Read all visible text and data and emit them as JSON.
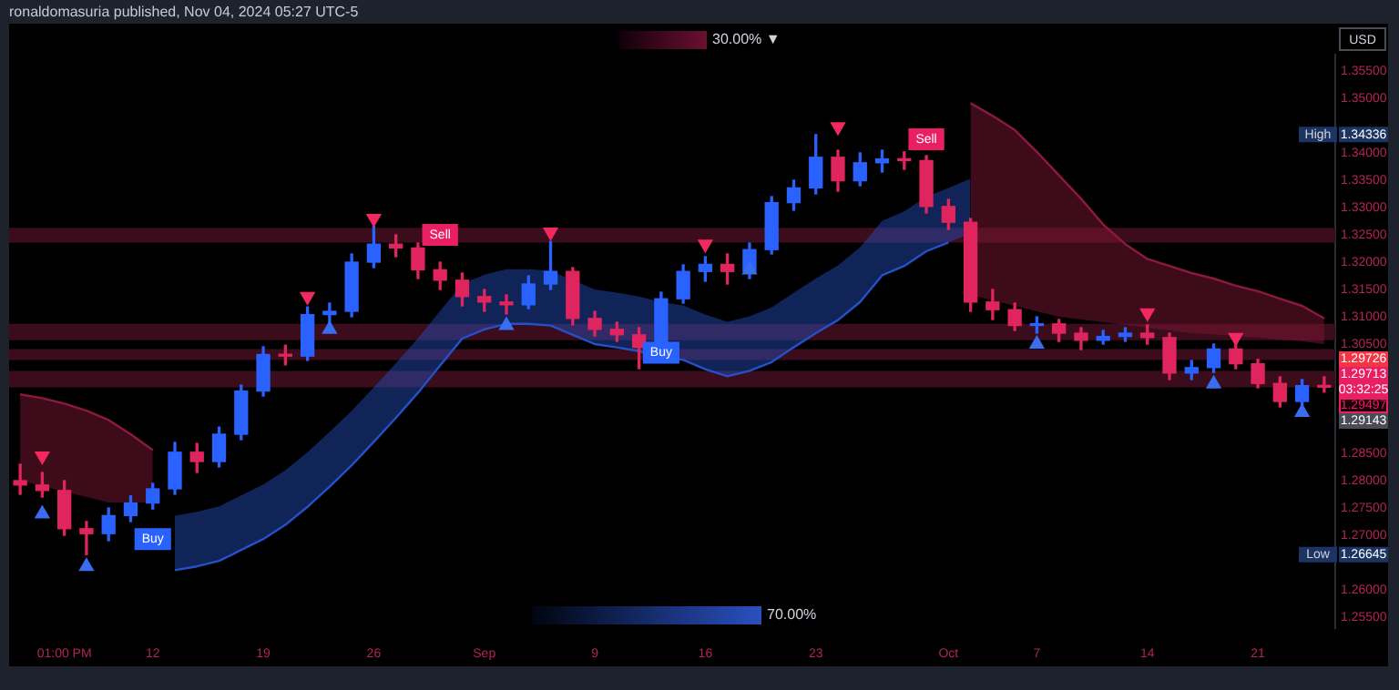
{
  "chart_data": {
    "type": "candlestick",
    "categories": [
      null,
      null,
      "01:00 PM",
      null,
      null,
      null,
      "12",
      null,
      null,
      null,
      null,
      "19",
      null,
      null,
      null,
      null,
      "26",
      null,
      null,
      null,
      null,
      "Sep",
      null,
      null,
      null,
      null,
      "9",
      null,
      null,
      null,
      null,
      "16",
      null,
      null,
      null,
      null,
      "23",
      null,
      null,
      null,
      null,
      null,
      "Oct",
      null,
      null,
      null,
      "7",
      null,
      null,
      null,
      null,
      "14",
      null,
      null,
      null,
      null,
      "21",
      null,
      null,
      null
    ],
    "series": [
      {
        "type": "candlestick",
        "ohlc": [
          [
            1.28,
            1.283,
            1.2775,
            1.2792
          ],
          [
            1.2792,
            1.2815,
            1.277,
            1.2782
          ],
          [
            1.2782,
            1.28,
            1.27,
            1.2712
          ],
          [
            1.2712,
            1.2725,
            1.26645,
            1.2703
          ],
          [
            1.2703,
            1.275,
            1.269,
            1.2736
          ],
          [
            1.2736,
            1.2772,
            1.2725,
            1.2759
          ],
          [
            1.2759,
            1.2795,
            1.2748,
            1.2785
          ],
          [
            1.2785,
            1.287,
            1.2775,
            1.2852
          ],
          [
            1.2852,
            1.2868,
            1.2815,
            1.2835
          ],
          [
            1.2835,
            1.2898,
            1.2825,
            1.2885
          ],
          [
            1.2885,
            1.2975,
            1.2875,
            1.2964
          ],
          [
            1.2964,
            1.3045,
            1.2955,
            1.3031
          ],
          [
            1.3031,
            1.3048,
            1.3012,
            1.3028
          ],
          [
            1.3028,
            1.3118,
            1.302,
            1.3104
          ],
          [
            1.3104,
            1.3125,
            1.3085,
            1.311
          ],
          [
            1.311,
            1.3215,
            1.31,
            1.32
          ],
          [
            1.32,
            1.3266,
            1.319,
            1.3233
          ],
          [
            1.3233,
            1.325,
            1.321,
            1.3226
          ],
          [
            1.3226,
            1.3235,
            1.317,
            1.3186
          ],
          [
            1.3186,
            1.32,
            1.315,
            1.3167
          ],
          [
            1.3167,
            1.318,
            1.312,
            1.3137
          ],
          [
            1.3137,
            1.315,
            1.311,
            1.3127
          ],
          [
            1.3127,
            1.314,
            1.3105,
            1.3122
          ],
          [
            1.3122,
            1.3175,
            1.3115,
            1.316
          ],
          [
            1.316,
            1.3238,
            1.315,
            1.3183
          ],
          [
            1.3183,
            1.319,
            1.3085,
            1.3097
          ],
          [
            1.3097,
            1.311,
            1.3065,
            1.3077
          ],
          [
            1.3077,
            1.309,
            1.3055,
            1.3067
          ],
          [
            1.3067,
            1.308,
            1.3005,
            1.3044
          ],
          [
            1.3044,
            1.3145,
            1.3035,
            1.3133
          ],
          [
            1.3133,
            1.3195,
            1.3125,
            1.3183
          ],
          [
            1.3183,
            1.321,
            1.3165,
            1.3196
          ],
          [
            1.3196,
            1.3215,
            1.316,
            1.3183
          ],
          [
            1.3183,
            1.3235,
            1.317,
            1.3223
          ],
          [
            1.3223,
            1.332,
            1.3215,
            1.3309
          ],
          [
            1.3309,
            1.335,
            1.3295,
            1.3336
          ],
          [
            1.3336,
            1.34336,
            1.3325,
            1.3392
          ],
          [
            1.3392,
            1.3405,
            1.333,
            1.3349
          ],
          [
            1.3349,
            1.34,
            1.334,
            1.3382
          ],
          [
            1.3382,
            1.3405,
            1.3365,
            1.3389
          ],
          [
            1.3389,
            1.3402,
            1.337,
            1.3386
          ],
          [
            1.3386,
            1.3395,
            1.329,
            1.3302
          ],
          [
            1.3302,
            1.3315,
            1.326,
            1.3273
          ],
          [
            1.3273,
            1.328,
            1.311,
            1.3127
          ],
          [
            1.3127,
            1.315,
            1.3095,
            1.3113
          ],
          [
            1.3113,
            1.3125,
            1.3075,
            1.3084
          ],
          [
            1.3084,
            1.31,
            1.307,
            1.3087
          ],
          [
            1.3087,
            1.3095,
            1.3055,
            1.307
          ],
          [
            1.307,
            1.308,
            1.304,
            1.3057
          ],
          [
            1.3057,
            1.3075,
            1.305,
            1.3064
          ],
          [
            1.3064,
            1.308,
            1.3055,
            1.307
          ],
          [
            1.307,
            1.3085,
            1.305,
            1.3062
          ],
          [
            1.3062,
            1.307,
            1.2985,
            1.2997
          ],
          [
            1.2997,
            1.302,
            1.2985,
            1.3007
          ],
          [
            1.3007,
            1.305,
            1.2998,
            1.3041
          ],
          [
            1.3041,
            1.3048,
            1.3005,
            1.3014
          ],
          [
            1.3014,
            1.3022,
            1.297,
            1.2978
          ],
          [
            1.2978,
            1.299,
            1.2935,
            1.2945
          ],
          [
            1.2945,
            1.2985,
            1.2938,
            1.2974
          ],
          [
            1.2974,
            1.299,
            1.2962,
            1.2971
          ]
        ],
        "colors": [
          "#e0245e",
          "#e0245e",
          "#e0245e",
          "#e0245e",
          "#2962ff",
          "#2962ff",
          "#2962ff",
          "#2962ff",
          "#e0245e",
          "#2962ff",
          "#2962ff",
          "#2962ff",
          "#e0245e",
          "#2962ff",
          "#2962ff",
          "#2962ff",
          "#2962ff",
          "#e0245e",
          "#e0245e",
          "#e0245e",
          "#e0245e",
          "#e0245e",
          "#e0245e",
          "#2962ff",
          "#2962ff",
          "#e0245e",
          "#e0245e",
          "#e0245e",
          "#e0245e",
          "#2962ff",
          "#2962ff",
          "#2962ff",
          "#e0245e",
          "#2962ff",
          "#2962ff",
          "#2962ff",
          "#2962ff",
          "#e0245e",
          "#2962ff",
          "#2962ff",
          "#e0245e",
          "#e0245e",
          "#e0245e",
          "#e0245e",
          "#e0245e",
          "#e0245e",
          "#2962ff",
          "#e0245e",
          "#e0245e",
          "#2962ff",
          "#2962ff",
          "#e0245e",
          "#e0245e",
          "#2962ff",
          "#2962ff",
          "#e0245e",
          "#e0245e",
          "#e0245e",
          "#2962ff",
          "#e0245e"
        ]
      },
      {
        "type": "line",
        "color": "#8b1a3c",
        "upper": [
          1.2958,
          1.2951,
          1.2941,
          1.2928,
          1.2911,
          1.2885,
          1.2856,
          null,
          null,
          null,
          null,
          null,
          null,
          null,
          null,
          null,
          null,
          null,
          null,
          null,
          null,
          null,
          null,
          null,
          null,
          null,
          null,
          null,
          null,
          null,
          null,
          null,
          null,
          null,
          null,
          null,
          null,
          null,
          null,
          null,
          null,
          null,
          null,
          null,
          null,
          null,
          null,
          null,
          null,
          null,
          null,
          null,
          null,
          null,
          null,
          null,
          null,
          null,
          null,
          null
        ],
        "values": [
          1.2958,
          1.2951,
          1.2941,
          1.2928,
          1.2911,
          1.2885,
          1.2856,
          null,
          null,
          null,
          null,
          null,
          null,
          null,
          null,
          null,
          null,
          null,
          null,
          null,
          null,
          null,
          null,
          null,
          null,
          null,
          null,
          null,
          null,
          null,
          null,
          null,
          null,
          null,
          null,
          null,
          null,
          null,
          null,
          null,
          null,
          null,
          null,
          null,
          null,
          null,
          null,
          null,
          null,
          null,
          null,
          null,
          null,
          null,
          null,
          null,
          null,
          null,
          null,
          null
        ],
        "lower": [
          1.28,
          1.279,
          1.278,
          1.277,
          1.276,
          1.276,
          1.276,
          null,
          null,
          null,
          null,
          null,
          null,
          null,
          null,
          null,
          null,
          null,
          null,
          null,
          null,
          null,
          null,
          null,
          null,
          null,
          null,
          null,
          null,
          null,
          null,
          null,
          null,
          null,
          null,
          null,
          null,
          null,
          null,
          null,
          null,
          null,
          null,
          null,
          null,
          null,
          null,
          null,
          null,
          null,
          null,
          null,
          null,
          null,
          null,
          null,
          null,
          null,
          null,
          null
        ]
      },
      {
        "type": "line",
        "color": "#2451c8",
        "lower": [
          null,
          null,
          null,
          null,
          null,
          null,
          null,
          1.2636,
          1.2643,
          1.2653,
          1.2673,
          1.2693,
          1.2719,
          1.2752,
          1.2789,
          1.2828,
          1.2871,
          1.2915,
          1.2961,
          1.3011,
          1.306,
          1.3077,
          1.3087,
          1.3087,
          1.3084,
          1.3067,
          1.305,
          1.3044,
          1.3037,
          1.3027,
          1.3021,
          1.3004,
          1.2991,
          1.3001,
          1.3017,
          1.3044,
          1.307,
          1.3094,
          1.3127,
          1.3176,
          1.3193,
          1.322,
          1.3236,
          1.3253,
          null,
          null,
          null,
          null,
          null,
          null,
          null,
          null,
          null,
          null,
          null,
          null,
          null,
          null,
          null,
          null
        ],
        "values": [
          null,
          null,
          null,
          null,
          null,
          null,
          null,
          1.2636,
          1.2643,
          1.2653,
          1.2673,
          1.2693,
          1.2719,
          1.2752,
          1.2789,
          1.2828,
          1.2871,
          1.2915,
          1.2961,
          1.3011,
          1.306,
          1.3077,
          1.3087,
          1.3087,
          1.3084,
          1.3067,
          1.305,
          1.3044,
          1.3037,
          1.3027,
          1.3021,
          1.3004,
          1.2991,
          1.3001,
          1.3017,
          1.3044,
          1.307,
          1.3094,
          1.3127,
          1.3176,
          1.3193,
          1.322,
          1.3236,
          null,
          null,
          null,
          null,
          null,
          null,
          null,
          null,
          null,
          null,
          null,
          null,
          null,
          null,
          null,
          null,
          null
        ],
        "upper": [
          null,
          null,
          null,
          null,
          null,
          null,
          null,
          1.2736,
          1.2743,
          1.2753,
          1.2773,
          1.2793,
          1.2819,
          1.2852,
          1.2889,
          1.2928,
          1.2971,
          1.3015,
          1.3061,
          1.3111,
          1.316,
          1.3177,
          1.3187,
          1.3187,
          1.3184,
          1.3167,
          1.315,
          1.3144,
          1.3137,
          1.3127,
          1.3121,
          1.3104,
          1.3091,
          1.3101,
          1.3117,
          1.3144,
          1.317,
          1.3194,
          1.3227,
          1.3276,
          1.3293,
          1.332,
          1.3336,
          1.3353,
          null,
          null,
          null,
          null,
          null,
          null,
          null,
          null,
          null,
          null,
          null,
          null,
          null,
          null,
          null,
          null
        ]
      },
      {
        "type": "line",
        "color": "#8b1a3c",
        "upper": [
          null,
          null,
          null,
          null,
          null,
          null,
          null,
          null,
          null,
          null,
          null,
          null,
          null,
          null,
          null,
          null,
          null,
          null,
          null,
          null,
          null,
          null,
          null,
          null,
          null,
          null,
          null,
          null,
          null,
          null,
          null,
          null,
          null,
          null,
          null,
          null,
          null,
          null,
          null,
          null,
          null,
          null,
          null,
          1.3491,
          1.3468,
          1.3442,
          1.3402,
          1.3359,
          1.3316,
          1.3269,
          1.3233,
          1.3206,
          1.3193,
          1.318,
          1.317,
          1.3157,
          1.3147,
          1.3133,
          1.312,
          1.3097
        ],
        "values": [
          null,
          null,
          null,
          null,
          null,
          null,
          null,
          null,
          null,
          null,
          null,
          null,
          null,
          null,
          null,
          null,
          null,
          null,
          null,
          null,
          null,
          null,
          null,
          null,
          null,
          null,
          null,
          null,
          null,
          null,
          null,
          null,
          null,
          null,
          null,
          null,
          null,
          null,
          null,
          null,
          null,
          null,
          null,
          1.3491,
          1.3468,
          1.3442,
          1.3402,
          1.3359,
          1.3316,
          1.3269,
          1.3233,
          1.3206,
          1.3193,
          1.318,
          1.317,
          1.3157,
          1.3147,
          1.3133,
          1.312,
          1.3097
        ],
        "lower": [
          null,
          null,
          null,
          null,
          null,
          null,
          null,
          null,
          null,
          null,
          null,
          null,
          null,
          null,
          null,
          null,
          null,
          null,
          null,
          null,
          null,
          null,
          null,
          null,
          null,
          null,
          null,
          null,
          null,
          null,
          null,
          null,
          null,
          null,
          null,
          null,
          null,
          null,
          null,
          null,
          null,
          null,
          null,
          1.314,
          1.313,
          1.312,
          1.311,
          1.31,
          1.3095,
          1.309,
          1.3085,
          1.308,
          1.3075,
          1.307,
          1.3068,
          1.3065,
          1.3062,
          1.3058,
          1.3055,
          1.305
        ]
      },
      {
        "type": "scatter",
        "marker": "triangle",
        "color": "#3a6df0",
        "values": [
          null,
          1.2739,
          null,
          1.2643,
          null,
          null,
          null,
          null,
          null,
          null,
          null,
          null,
          null,
          null,
          1.3077,
          null,
          null,
          null,
          null,
          null,
          null,
          null,
          1.3084,
          null,
          null,
          null,
          null,
          null,
          null,
          null,
          null,
          null,
          null,
          1.3186,
          null,
          null,
          null,
          null,
          null,
          null,
          null,
          null,
          null,
          null,
          null,
          null,
          1.305,
          null,
          null,
          null,
          null,
          null,
          null,
          null,
          1.2977,
          null,
          null,
          null,
          1.2925,
          null
        ]
      },
      {
        "type": "scatter",
        "marker": "triangle",
        "color": "#f2295f",
        "values": [
          null,
          1.2845,
          null,
          null,
          null,
          null,
          null,
          null,
          null,
          null,
          null,
          null,
          null,
          1.3137,
          null,
          null,
          1.328,
          null,
          null,
          null,
          null,
          null,
          null,
          null,
          1.3255,
          null,
          null,
          null,
          null,
          null,
          null,
          1.3233,
          null,
          null,
          null,
          null,
          null,
          1.3448,
          null,
          null,
          null,
          null,
          null,
          null,
          null,
          null,
          null,
          null,
          null,
          null,
          null,
          1.3107,
          null,
          null,
          null,
          1.3062,
          null,
          null,
          null,
          null
        ]
      },
      {
        "type": "scatter",
        "marker": "square",
        "color": "#2962ff",
        "values": [
          null,
          null,
          null,
          null,
          null,
          null,
          1.2693,
          null,
          null,
          null,
          null,
          null,
          null,
          null,
          null,
          null,
          null,
          null,
          null,
          null,
          null,
          null,
          null,
          null,
          null,
          null,
          null,
          null,
          null,
          1.3034,
          null,
          null,
          null,
          null,
          null,
          null,
          null,
          null,
          null,
          null,
          null,
          null,
          null,
          null,
          null,
          null,
          null,
          null,
          null,
          null,
          null,
          null,
          null,
          null,
          null,
          null,
          null,
          null,
          null,
          null
        ],
        "value_labels": [
          null,
          null,
          null,
          null,
          null,
          null,
          "Buy",
          null,
          null,
          null,
          null,
          null,
          null,
          null,
          null,
          null,
          null,
          null,
          null,
          null,
          null,
          null,
          null,
          null,
          null,
          null,
          null,
          null,
          null,
          "Buy",
          null,
          null,
          null,
          null,
          null,
          null,
          null,
          null,
          null,
          null,
          null,
          null,
          null,
          null,
          null,
          null,
          null,
          null,
          null,
          null,
          null,
          null,
          null,
          null,
          null,
          null,
          null,
          null,
          null,
          null
        ]
      },
      {
        "type": "scatter",
        "marker": "square",
        "color": "#e91e63",
        "values": [
          null,
          null,
          null,
          null,
          null,
          null,
          null,
          null,
          null,
          null,
          null,
          null,
          null,
          null,
          null,
          null,
          null,
          null,
          null,
          1.325,
          null,
          null,
          null,
          null,
          null,
          null,
          null,
          null,
          null,
          null,
          null,
          null,
          null,
          null,
          null,
          null,
          null,
          null,
          null,
          null,
          null,
          1.3425,
          null,
          null,
          null,
          null,
          null,
          null,
          null,
          null,
          null,
          null,
          null,
          null,
          null,
          null,
          null,
          null,
          null,
          null
        ],
        "value_labels": [
          null,
          null,
          null,
          null,
          null,
          null,
          null,
          null,
          null,
          null,
          null,
          null,
          null,
          null,
          null,
          null,
          null,
          null,
          null,
          "Sell",
          null,
          null,
          null,
          null,
          null,
          null,
          null,
          null,
          null,
          null,
          null,
          null,
          null,
          null,
          null,
          null,
          null,
          null,
          null,
          null,
          null,
          "Sell",
          null,
          null,
          null,
          null,
          null,
          null,
          null,
          null,
          null,
          null,
          null,
          null,
          null,
          null,
          null,
          null,
          null,
          null
        ]
      }
    ],
    "ylim": [
      1.253,
      1.358
    ],
    "yticks": [
      {
        "value": 1.255,
        "label": "1.25500"
      },
      {
        "value": 1.26,
        "label": "1.26000"
      },
      {
        "value": 1.27,
        "label": "1.27000"
      },
      {
        "value": 1.275,
        "label": "1.27500"
      },
      {
        "value": 1.28,
        "label": "1.28000"
      },
      {
        "value": 1.285,
        "label": "1.28500"
      },
      {
        "value": 1.305,
        "label": "1.30500"
      },
      {
        "value": 1.31,
        "label": "1.31000"
      },
      {
        "value": 1.315,
        "label": "1.31500"
      },
      {
        "value": 1.32,
        "label": "1.32000"
      },
      {
        "value": 1.325,
        "label": "1.32500"
      },
      {
        "value": 1.33,
        "label": "1.33000"
      },
      {
        "value": 1.335,
        "label": "1.33500"
      },
      {
        "value": 1.34,
        "label": "1.34000"
      },
      {
        "value": 1.35,
        "label": "1.35000"
      },
      {
        "value": 1.355,
        "label": "1.35500"
      }
    ],
    "bands": [
      {
        "axis": "y",
        "from": 1.3236,
        "to": 1.3263,
        "color": "#3a0c1c"
      },
      {
        "axis": "y",
        "from": 1.3057,
        "to": 1.3087,
        "color": "#3a0c1c"
      },
      {
        "axis": "y",
        "from": 1.3021,
        "to": 1.3041,
        "color": "#3a0c1c"
      },
      {
        "axis": "y",
        "from": 1.2971,
        "to": 1.3001,
        "color": "#3a0c1c"
      }
    ],
    "grid": false,
    "annotations": [
      "ronaldomasuria published, Nov 04, 2024 05:27 UTC-5",
      "30.00% ▼",
      "70.00%",
      "USD",
      {
        "text": "High",
        "y": 1.34336
      },
      {
        "text": "1.34336",
        "y": 1.34336
      },
      {
        "text": "Low",
        "y": 1.26645
      },
      {
        "text": "1.26645",
        "y": 1.26645
      },
      {
        "text": "1.29726",
        "y": 1.29726
      },
      "1.29713",
      "03:32:25",
      "1.29497",
      "1.29143"
    ]
  }
}
